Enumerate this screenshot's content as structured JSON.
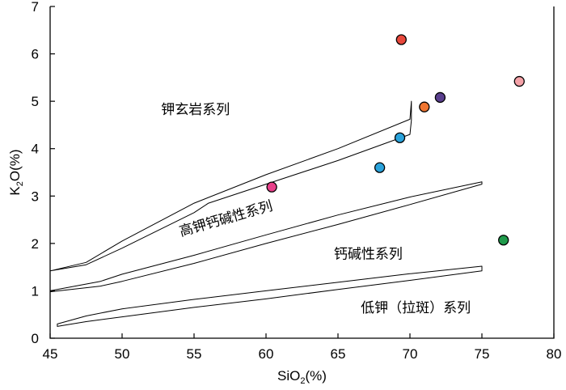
{
  "chart_data": {
    "type": "scatter",
    "title": "",
    "xlabel": {
      "main": "SiO",
      "sub": "2",
      "rest": "(%)"
    },
    "ylabel": {
      "main": "K",
      "sub": "2",
      "rest": "O(%)"
    },
    "xlim": [
      45,
      80
    ],
    "ylim": [
      0,
      7
    ],
    "xticks": [
      45,
      50,
      55,
      60,
      65,
      70,
      75,
      80
    ],
    "yticks": [
      0,
      1,
      2,
      3,
      4,
      5,
      6,
      7
    ],
    "grid": false,
    "points": [
      {
        "x": 69.4,
        "y": 6.3,
        "color": "#e8483c"
      },
      {
        "x": 77.6,
        "y": 5.42,
        "color": "#f4a2a8"
      },
      {
        "x": 72.1,
        "y": 5.08,
        "color": "#5a3f8e"
      },
      {
        "x": 71.0,
        "y": 4.88,
        "color": "#ef7530"
      },
      {
        "x": 69.3,
        "y": 4.23,
        "color": "#2aa3dc"
      },
      {
        "x": 67.9,
        "y": 3.6,
        "color": "#2aa3dc"
      },
      {
        "x": 60.4,
        "y": 3.19,
        "color": "#e8408a"
      },
      {
        "x": 76.5,
        "y": 2.07,
        "color": "#1f9a4b"
      }
    ],
    "boundaries": [
      {
        "name": "upper-band",
        "upper": [
          [
            45,
            1.42
          ],
          [
            47.5,
            1.6
          ],
          [
            50,
            2.05
          ],
          [
            55,
            2.85
          ],
          [
            60,
            3.45
          ],
          [
            65,
            4.0
          ],
          [
            70,
            4.62
          ],
          [
            70.1,
            5.0
          ]
        ],
        "lower": [
          [
            45,
            1.42
          ],
          [
            47.5,
            1.55
          ],
          [
            50,
            1.9
          ],
          [
            55,
            2.65
          ],
          [
            56,
            2.85
          ],
          [
            60,
            3.25
          ],
          [
            65,
            3.75
          ],
          [
            70,
            4.3
          ],
          [
            70.1,
            4.6
          ]
        ]
      },
      {
        "name": "middle-band",
        "upper": [
          [
            45,
            1.0
          ],
          [
            48.5,
            1.2
          ],
          [
            50,
            1.35
          ],
          [
            55,
            1.75
          ],
          [
            60,
            2.18
          ],
          [
            65,
            2.6
          ],
          [
            70,
            2.98
          ],
          [
            75,
            3.3
          ]
        ],
        "lower": [
          [
            45,
            0.98
          ],
          [
            48.5,
            1.1
          ],
          [
            50,
            1.2
          ],
          [
            55,
            1.58
          ],
          [
            60,
            2.0
          ],
          [
            65,
            2.4
          ],
          [
            70,
            2.82
          ],
          [
            75,
            3.25
          ]
        ]
      },
      {
        "name": "lower-band",
        "upper": [
          [
            45.5,
            0.3
          ],
          [
            47.5,
            0.47
          ],
          [
            50,
            0.62
          ],
          [
            55,
            0.82
          ],
          [
            60,
            1.0
          ],
          [
            65,
            1.18
          ],
          [
            70,
            1.36
          ],
          [
            75,
            1.52
          ]
        ],
        "lower": [
          [
            45.5,
            0.25
          ],
          [
            47.5,
            0.35
          ],
          [
            50,
            0.45
          ],
          [
            55,
            0.65
          ],
          [
            60,
            0.83
          ],
          [
            65,
            1.03
          ],
          [
            70,
            1.22
          ],
          [
            75,
            1.42
          ]
        ]
      }
    ],
    "annotations": [
      {
        "text": "钾玄岩系列",
        "x": 55.1,
        "y": 4.73,
        "rotate": 0
      },
      {
        "text": "高钾钙碱性系列",
        "x": 57.3,
        "y": 2.43,
        "rotate": -16
      },
      {
        "text": "钙碱性系列",
        "x": 67.1,
        "y": 1.68,
        "rotate": 0
      },
      {
        "text": "低钾（拉斑）系列",
        "x": 70.4,
        "y": 0.55,
        "rotate": 0
      }
    ]
  }
}
